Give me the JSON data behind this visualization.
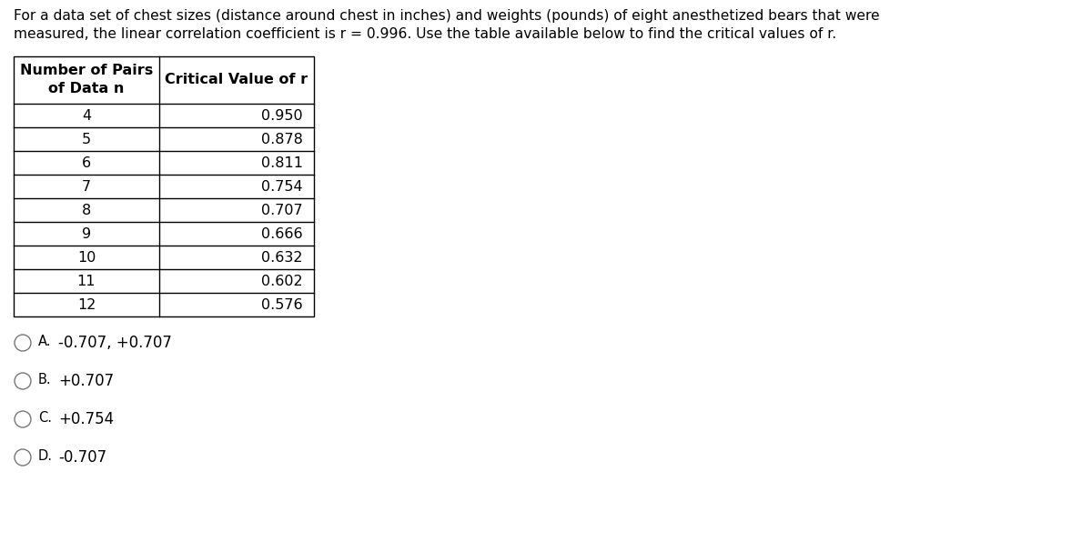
{
  "title_line1": "For a data set of chest sizes (distance around chest in inches) and weights (pounds) of eight anesthetized bears that were",
  "title_line2": "measured, the linear correlation coefficient is r = 0.996. Use the table available below to find the critical values of r.",
  "col1_header_line1": "Number of Pairs",
  "col1_header_line2": "of Data n",
  "col2_header": "Critical Value of r",
  "table_data": [
    [
      4,
      "0.950"
    ],
    [
      5,
      "0.878"
    ],
    [
      6,
      "0.811"
    ],
    [
      7,
      "0.754"
    ],
    [
      8,
      "0.707"
    ],
    [
      9,
      "0.666"
    ],
    [
      10,
      "0.632"
    ],
    [
      11,
      "0.602"
    ],
    [
      12,
      "0.576"
    ]
  ],
  "options": [
    {
      "label": "A.",
      "text": "-0.707, +0.707"
    },
    {
      "label": "B.",
      "text": "+0.707"
    },
    {
      "label": "C.",
      "text": "+0.754"
    },
    {
      "label": "D.",
      "text": "-0.707"
    }
  ],
  "background_color": "#ffffff",
  "text_color": "#000000",
  "table_border_color": "#000000",
  "font_size_title": 11.2,
  "font_size_table_header": 11.5,
  "font_size_table_data": 11.5,
  "font_size_options_label": 10.5,
  "font_size_options_text": 12.0,
  "fig_width": 12.0,
  "fig_height": 6.07,
  "dpi": 100
}
